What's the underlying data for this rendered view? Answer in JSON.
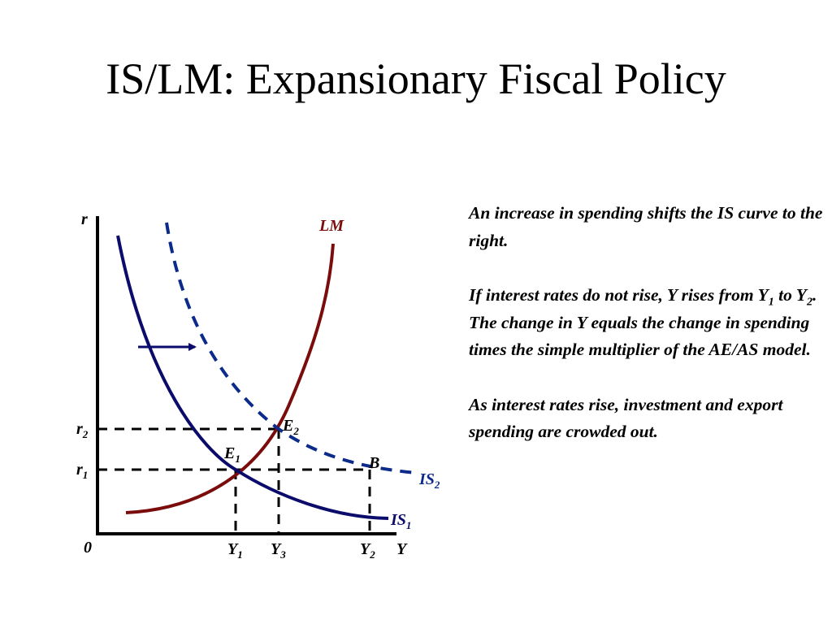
{
  "slide": {
    "title": "IS/LM: Expansionary Fiscal Policy"
  },
  "diagram": {
    "y_axis_label": "r",
    "x_axis_label": "Y",
    "origin_label": "0",
    "rate_labels": [
      {
        "base": "r",
        "sub": "2"
      },
      {
        "base": "r",
        "sub": "1"
      }
    ],
    "output_labels": [
      {
        "base": "Y",
        "sub": "1"
      },
      {
        "base": "Y",
        "sub": "3"
      },
      {
        "base": "Y",
        "sub": "2"
      }
    ],
    "curves": {
      "lm": {
        "label": "LM",
        "color": "#7a0c0c"
      },
      "is1": {
        "base": "IS",
        "sub": "1",
        "color": "#0b0b6b"
      },
      "is2": {
        "base": "IS",
        "sub": "2",
        "color": "#0b2a8a",
        "style": "dashed"
      }
    },
    "points": {
      "e1": {
        "base": "E",
        "sub": "1"
      },
      "e2": {
        "base": "E",
        "sub": "2"
      },
      "b": {
        "label": "B"
      }
    },
    "shift_arrow_direction": "right"
  },
  "notes": {
    "p1": "An increase in spending shifts the IS curve to the right.",
    "p2_a": "If interest rates do not rise, Y rises from Y",
    "p2_sub1": "1",
    "p2_b": " to Y",
    "p2_sub2": "2",
    "p2_c": ". The change in Y equals the change in spending times the simple multiplier of the AE/AS model.",
    "p3": "As interest rates rise, investment and export spending are crowded out."
  }
}
